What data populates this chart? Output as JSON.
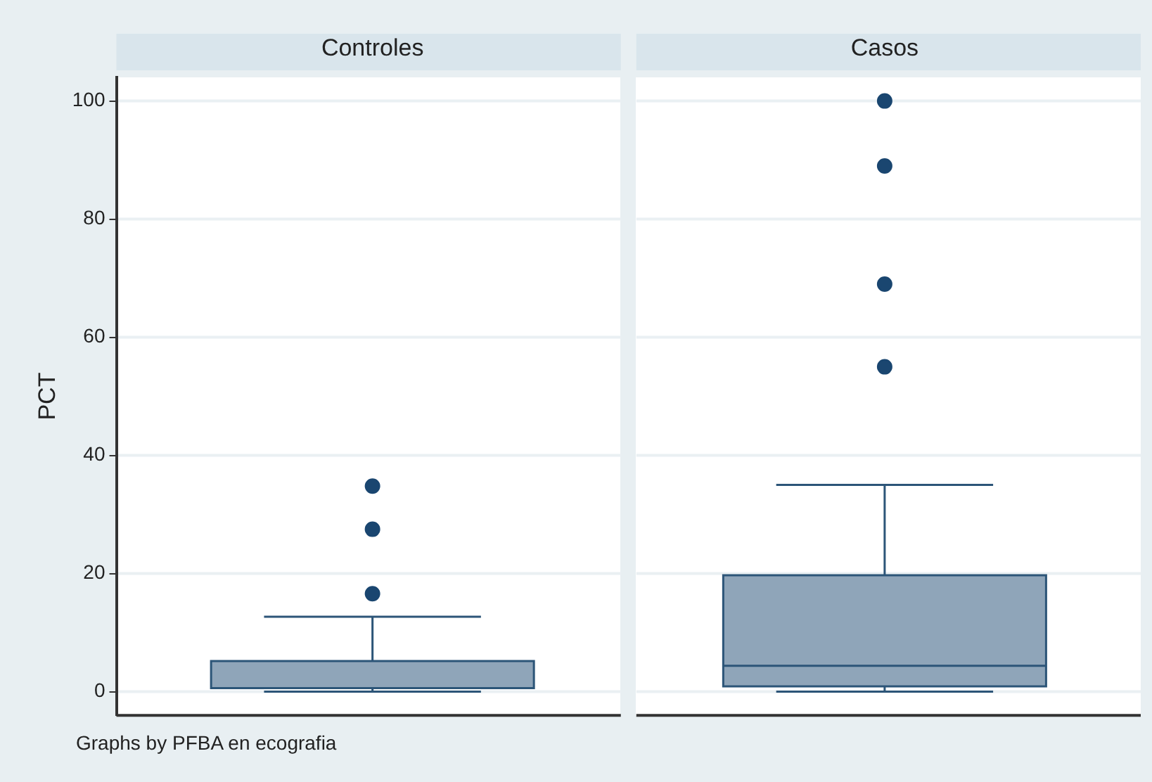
{
  "chart_data": {
    "type": "box",
    "ylabel": "PCT",
    "categories": [
      "Controles",
      "Casos"
    ],
    "color": "#8fa5b9",
    "boxes": [
      {
        "low": 0,
        "q1": 0.6,
        "median": 0.6,
        "q3": 5.2,
        "high": 12.7,
        "outliers": [
          16.6,
          27.5,
          34.8
        ]
      },
      {
        "low": 0,
        "q1": 0.9,
        "median": 4.4,
        "q3": 19.7,
        "high": 35,
        "outliers": [
          55,
          69,
          89,
          100
        ]
      }
    ],
    "ylim": [
      -4,
      104
    ],
    "yticks": [
      0,
      20,
      40,
      60,
      80,
      100
    ],
    "grid": "y",
    "annotations": [
      "Graphs by PFBA en ecografia"
    ]
  }
}
